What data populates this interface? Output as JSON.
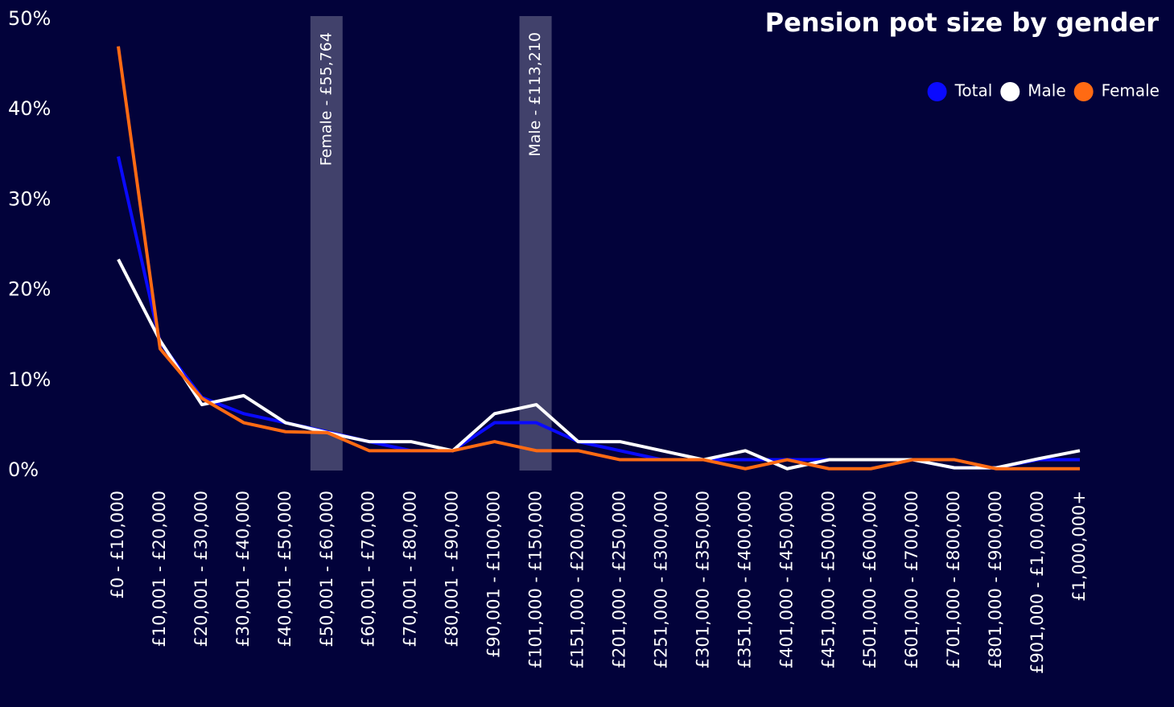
{
  "chart_data": {
    "type": "line",
    "title": "Pension pot size by gender",
    "categories": [
      "£0 - £10,000",
      "£10,001 - £20,000",
      "£20,001 - £30,000",
      "£30,001 - £40,000",
      "£40,001 - £50,000",
      "£50,001 - £60,000",
      "£60,001 - £70,000",
      "£70,001 - £80,000",
      "£80,001 - £90,000",
      "£90,001 - £100,000",
      "£101,000 - £150,000",
      "£151,000 - £200,000",
      "£201,000 - £250,000",
      "£251,000 - £300,000",
      "£301,000 - £350,000",
      "£351,000 - £400,000",
      "£401,000 - £450,000",
      "£451,000 - £500,000",
      "£501,000 - £600,000",
      "£601,000 - £700,000",
      "£701,000 - £800,000",
      "£801,000 - £900,000",
      "£901,000 - £1,00,000",
      "£1,000,000+"
    ],
    "series": [
      {
        "name": "Total",
        "color": "#0a0aff",
        "values": [
          34.8,
          14.2,
          8.1,
          6.3,
          5.3,
          4.3,
          3.2,
          2.2,
          2.2,
          5.3,
          5.3,
          3.2,
          2.2,
          1.2,
          1.2,
          1.2,
          1.2,
          1.2,
          1.2,
          1.2,
          0.3,
          0.3,
          1.2,
          1.2
        ]
      },
      {
        "name": "Male",
        "color": "#ffffff",
        "values": [
          23.4,
          14.4,
          7.3,
          8.3,
          5.3,
          4.2,
          3.2,
          3.2,
          2.2,
          6.3,
          7.3,
          3.2,
          3.2,
          2.2,
          1.2,
          2.2,
          0.2,
          1.2,
          1.2,
          1.2,
          0.3,
          0.3,
          1.3,
          2.2
        ]
      },
      {
        "name": "Female",
        "color": "#ff6a13",
        "values": [
          47.0,
          13.5,
          8.0,
          5.3,
          4.3,
          4.2,
          2.2,
          2.2,
          2.2,
          3.2,
          2.2,
          2.2,
          1.2,
          1.2,
          1.2,
          0.2,
          1.2,
          0.2,
          0.2,
          1.2,
          1.2,
          0.2,
          0.2,
          0.2
        ]
      }
    ],
    "ylim": [
      0,
      50
    ],
    "yticks": [
      {
        "value": 0,
        "label": "0%"
      },
      {
        "value": 10,
        "label": "10%"
      },
      {
        "value": 20,
        "label": "20%"
      },
      {
        "value": 30,
        "label": "30%"
      },
      {
        "value": 40,
        "label": "40%"
      },
      {
        "value": 50,
        "label": "50%"
      }
    ],
    "grid": false,
    "legend": "top-right",
    "annotations": [
      {
        "text": "Female - £55,764",
        "category": "£50,001 - £60,000"
      },
      {
        "text": "Male - £113,210",
        "category": "£101,000 - £150,000"
      }
    ]
  }
}
